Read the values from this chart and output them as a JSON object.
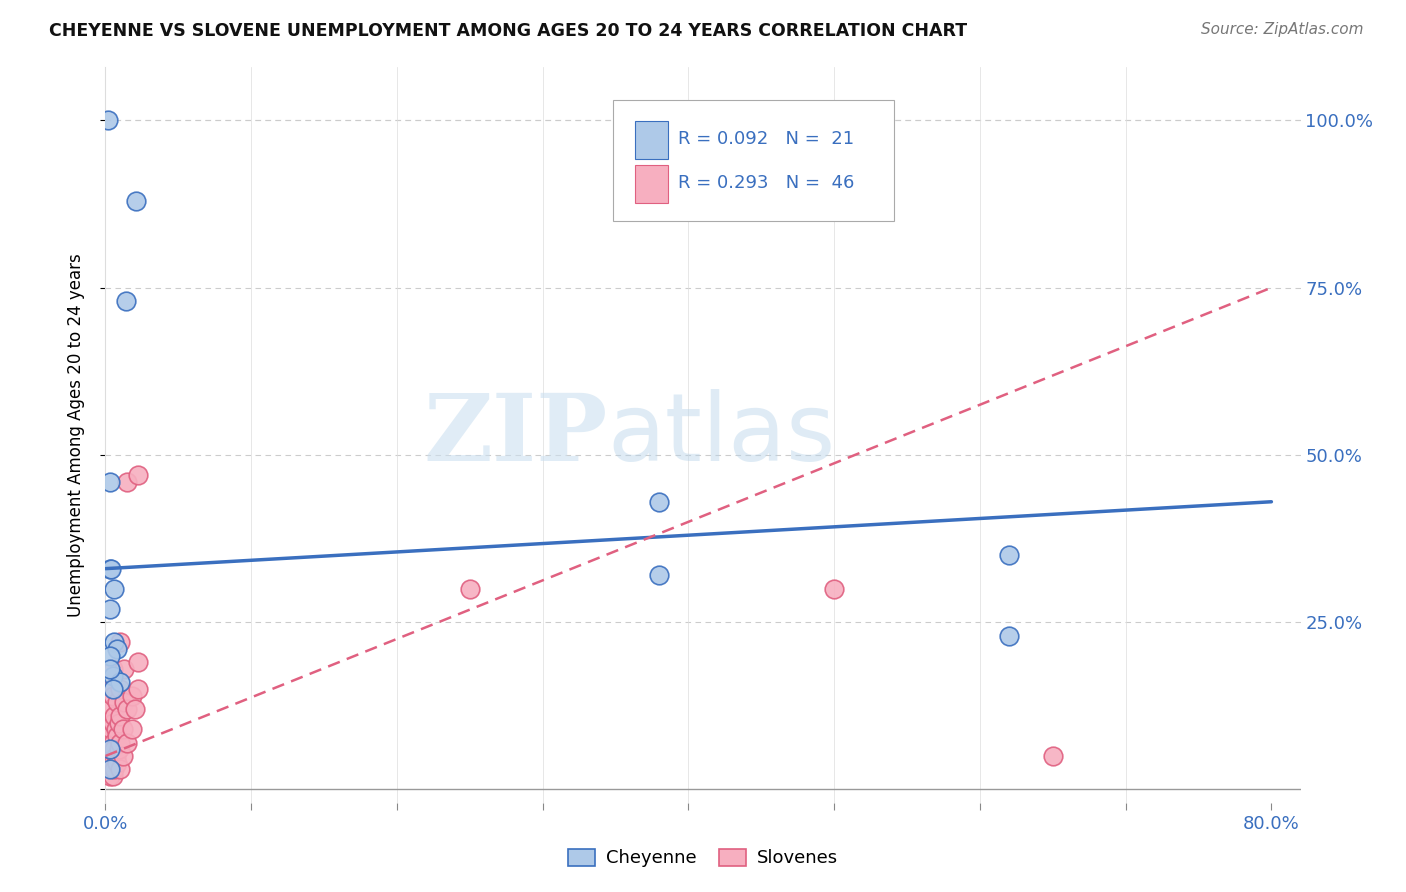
{
  "title": "CHEYENNE VS SLOVENE UNEMPLOYMENT AMONG AGES 20 TO 24 YEARS CORRELATION CHART",
  "source": "Source: ZipAtlas.com",
  "ylabel": "Unemployment Among Ages 20 to 24 years",
  "cheyenne_color": "#aec9e8",
  "slovene_color": "#f7afc0",
  "cheyenne_line_color": "#3a6fbf",
  "slovene_line_color": "#e06080",
  "cheyenne_R": 0.092,
  "cheyenne_N": 21,
  "slovene_R": 0.293,
  "slovene_N": 46,
  "legend_label_cheyenne": "Cheyenne",
  "legend_label_slovene": "Slovenes",
  "watermark_zip": "ZIP",
  "watermark_atlas": "atlas",
  "cheyenne_x": [
    0.002,
    0.021,
    0.014,
    0.003,
    0.003,
    0.004,
    0.006,
    0.006,
    0.008,
    0.005,
    0.01,
    0.005,
    0.003,
    0.003,
    0.003,
    0.003,
    0.003,
    0.38,
    0.38,
    0.62,
    0.62
  ],
  "cheyenne_y": [
    1.0,
    0.88,
    0.73,
    0.46,
    0.33,
    0.33,
    0.3,
    0.22,
    0.21,
    0.17,
    0.16,
    0.15,
    0.27,
    0.2,
    0.18,
    0.06,
    0.03,
    0.43,
    0.32,
    0.35,
    0.23
  ],
  "slovene_x": [
    0.003,
    0.003,
    0.003,
    0.003,
    0.003,
    0.004,
    0.004,
    0.004,
    0.004,
    0.005,
    0.005,
    0.005,
    0.005,
    0.005,
    0.005,
    0.006,
    0.006,
    0.006,
    0.007,
    0.007,
    0.008,
    0.008,
    0.008,
    0.009,
    0.009,
    0.01,
    0.01,
    0.01,
    0.01,
    0.01,
    0.012,
    0.012,
    0.013,
    0.013,
    0.015,
    0.015,
    0.015,
    0.018,
    0.018,
    0.02,
    0.022,
    0.022,
    0.022,
    0.25,
    0.5,
    0.65
  ],
  "slovene_y": [
    0.02,
    0.04,
    0.06,
    0.08,
    0.12,
    0.03,
    0.05,
    0.09,
    0.15,
    0.02,
    0.04,
    0.07,
    0.1,
    0.14,
    0.18,
    0.03,
    0.06,
    0.11,
    0.05,
    0.09,
    0.04,
    0.08,
    0.13,
    0.06,
    0.1,
    0.03,
    0.07,
    0.11,
    0.15,
    0.22,
    0.05,
    0.09,
    0.13,
    0.18,
    0.07,
    0.12,
    0.46,
    0.09,
    0.14,
    0.12,
    0.15,
    0.19,
    0.47,
    0.3,
    0.3,
    0.05
  ],
  "xlim": [
    0.0,
    0.82
  ],
  "ylim": [
    -0.02,
    1.08
  ],
  "xtick_pos": [
    0.0,
    0.1,
    0.2,
    0.3,
    0.4,
    0.5,
    0.6,
    0.7,
    0.8
  ],
  "xtick_labels": [
    "0.0%",
    "",
    "",
    "",
    "",
    "",
    "",
    "",
    "80.0%"
  ],
  "ytick_pos": [
    0.0,
    0.25,
    0.5,
    0.75,
    1.0
  ],
  "ytick_labels": [
    "",
    "25.0%",
    "50.0%",
    "75.0%",
    "100.0%"
  ],
  "cheyenne_line_x": [
    0.0,
    0.8
  ],
  "cheyenne_line_y": [
    0.33,
    0.43
  ],
  "slovene_line_x": [
    0.0,
    0.8
  ],
  "slovene_line_y": [
    0.05,
    0.75
  ]
}
